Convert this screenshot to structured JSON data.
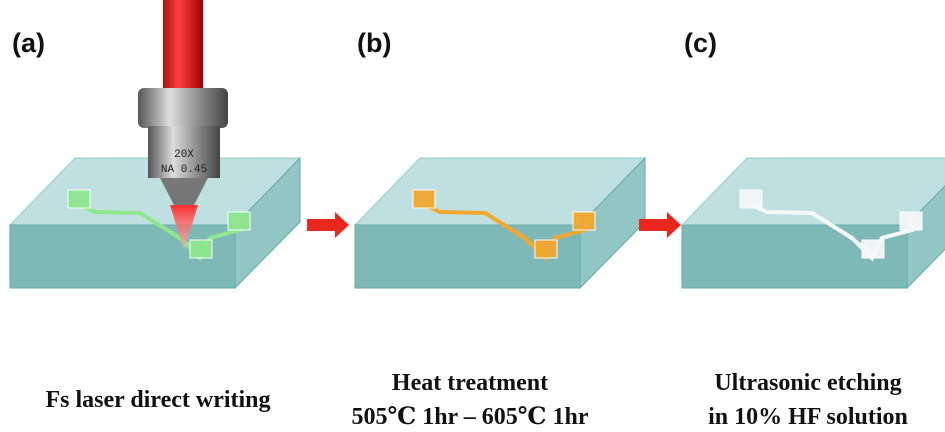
{
  "panels": [
    {
      "label": "(a)",
      "caption": [
        "Fs laser direct writing"
      ]
    },
    {
      "label": "(b)",
      "caption": [
        "Heat treatment",
        "505℃ 1hr – 605℃ 1hr"
      ]
    },
    {
      "label": "(c)",
      "caption": [
        "Ultrasonic etching",
        "in 10% HF solution"
      ]
    }
  ],
  "objective": {
    "magnification": "20X",
    "aperture": "NA 0.45"
  }
}
